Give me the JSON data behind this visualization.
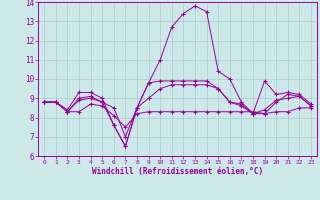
{
  "title": "",
  "xlabel": "Windchill (Refroidissement éolien,°C)",
  "ylabel": "",
  "xlim": [
    -0.5,
    23.5
  ],
  "ylim": [
    6,
    14
  ],
  "yticks": [
    6,
    7,
    8,
    9,
    10,
    11,
    12,
    13,
    14
  ],
  "xticks": [
    0,
    1,
    2,
    3,
    4,
    5,
    6,
    7,
    8,
    9,
    10,
    11,
    12,
    13,
    14,
    15,
    16,
    17,
    18,
    19,
    20,
    21,
    22,
    23
  ],
  "bg_color": "#cce8e8",
  "line_color": "#990099",
  "grid_color": "#aacccc",
  "series": [
    [
      8.8,
      8.8,
      8.4,
      9.3,
      9.3,
      9.0,
      7.6,
      6.5,
      8.5,
      9.8,
      11.0,
      12.7,
      13.4,
      13.8,
      13.5,
      10.4,
      10.0,
      8.8,
      8.2,
      9.9,
      9.2,
      9.3,
      9.2,
      8.7
    ],
    [
      8.8,
      8.8,
      8.3,
      8.3,
      8.7,
      8.6,
      8.1,
      7.5,
      8.2,
      8.3,
      8.3,
      8.3,
      8.3,
      8.3,
      8.3,
      8.3,
      8.3,
      8.3,
      8.3,
      8.2,
      8.3,
      8.3,
      8.5,
      8.5
    ],
    [
      8.8,
      8.8,
      8.3,
      9.0,
      9.1,
      8.8,
      7.6,
      6.5,
      8.5,
      9.8,
      9.9,
      9.9,
      9.9,
      9.9,
      9.9,
      9.5,
      8.8,
      8.7,
      8.2,
      8.2,
      8.8,
      9.2,
      9.1,
      8.6
    ],
    [
      8.8,
      8.8,
      8.3,
      8.9,
      9.0,
      8.8,
      8.5,
      7.0,
      8.5,
      9.0,
      9.5,
      9.7,
      9.7,
      9.7,
      9.7,
      9.5,
      8.8,
      8.6,
      8.2,
      8.4,
      8.9,
      9.0,
      9.1,
      8.6
    ]
  ]
}
